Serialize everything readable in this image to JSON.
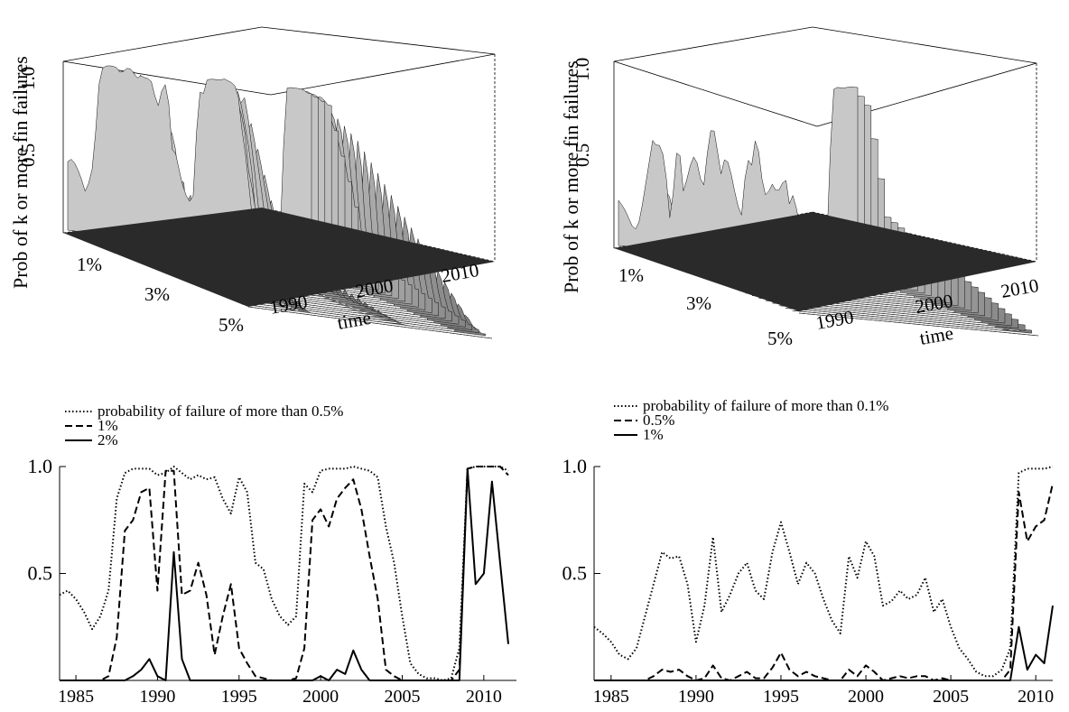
{
  "chart_data": [
    {
      "id": "top-left",
      "type": "surface3d",
      "zlabel": "Prob of k or more fin failures",
      "z_ticks": [
        "0.5",
        "1.0"
      ],
      "k_ticks": [
        "1%",
        "3%",
        "5%"
      ],
      "time_ticks": [
        "1990",
        "2000",
        "2010"
      ],
      "time_label": "time",
      "k_range": [
        0.5,
        5
      ],
      "time_range": [
        1984,
        2012
      ],
      "zlim": [
        0,
        1
      ]
    },
    {
      "id": "top-right",
      "type": "surface3d",
      "zlabel": "Prob of k or more fin failures",
      "z_ticks": [
        "0.5",
        "1.0"
      ],
      "k_ticks": [
        "1%",
        "3%",
        "5%"
      ],
      "time_ticks": [
        "1990",
        "2000",
        "2010"
      ],
      "time_label": "time",
      "k_range": [
        0.1,
        5
      ],
      "time_range": [
        1984,
        2012
      ],
      "zlim": [
        0,
        1
      ]
    },
    {
      "id": "bottom-left",
      "type": "line",
      "xlim": [
        1984,
        2012
      ],
      "ylim": [
        0,
        1
      ],
      "x_ticks": [
        "1985",
        "1990",
        "1995",
        "2000",
        "2005",
        "2010"
      ],
      "y_ticks": [
        "0.5",
        "1.0"
      ],
      "legend": "top-left",
      "series": [
        {
          "name": "probability of failure of more than 0.5%",
          "style": "dotted",
          "x": [
            1984,
            1984.5,
            1985,
            1985.5,
            1986,
            1986.5,
            1987,
            1987.5,
            1988,
            1988.5,
            1989,
            1989.5,
            1990,
            1990.5,
            1991,
            1991.5,
            1992,
            1992.5,
            1993,
            1993.5,
            1994,
            1994.5,
            1995,
            1995.5,
            1996,
            1996.5,
            1997,
            1997.5,
            1998,
            1998.5,
            1999,
            1999.5,
            2000,
            2000.5,
            2001,
            2001.5,
            2002,
            2002.5,
            2003,
            2003.5,
            2004,
            2004.5,
            2005,
            2005.5,
            2006,
            2006.5,
            2007,
            2007.5,
            2008,
            2008.5,
            2009,
            2009.5,
            2010,
            2010.5,
            2011,
            2011.5
          ],
          "y": [
            0.4,
            0.42,
            0.38,
            0.32,
            0.24,
            0.3,
            0.42,
            0.85,
            0.97,
            0.99,
            0.99,
            0.99,
            0.96,
            0.97,
            1.0,
            0.97,
            0.94,
            0.96,
            0.94,
            0.95,
            0.85,
            0.78,
            0.95,
            0.88,
            0.55,
            0.52,
            0.38,
            0.3,
            0.26,
            0.3,
            0.92,
            0.88,
            0.98,
            0.99,
            0.99,
            0.99,
            1.0,
            0.99,
            0.98,
            0.95,
            0.72,
            0.55,
            0.3,
            0.08,
            0.03,
            0.01,
            0.01,
            0.0,
            0.01,
            0.15,
            0.99,
            1.0,
            1.0,
            1.0,
            1.0,
            0.98
          ]
        },
        {
          "name": "1%",
          "style": "dashed",
          "x": [
            1984,
            1984.5,
            1985,
            1985.5,
            1986,
            1986.5,
            1987,
            1987.5,
            1988,
            1988.5,
            1989,
            1989.5,
            1990,
            1990.5,
            1991,
            1991.5,
            1992,
            1992.5,
            1993,
            1993.5,
            1994,
            1994.5,
            1995,
            1995.5,
            1996,
            1996.5,
            1997,
            1997.5,
            1998,
            1998.5,
            1999,
            1999.5,
            2000,
            2000.5,
            2001,
            2001.5,
            2002,
            2002.5,
            2003,
            2003.5,
            2004,
            2004.5,
            2005,
            2005.5,
            2006,
            2006.5,
            2007,
            2007.5,
            2008,
            2008.5,
            2009,
            2009.5,
            2010,
            2010.5,
            2011,
            2011.5
          ],
          "y": [
            0.0,
            0.0,
            0.0,
            0.0,
            0.0,
            0.0,
            0.02,
            0.2,
            0.7,
            0.75,
            0.88,
            0.9,
            0.42,
            0.98,
            0.98,
            0.4,
            0.42,
            0.55,
            0.4,
            0.12,
            0.3,
            0.45,
            0.15,
            0.08,
            0.02,
            0.01,
            0.0,
            0.0,
            0.0,
            0.01,
            0.15,
            0.75,
            0.8,
            0.72,
            0.85,
            0.9,
            0.94,
            0.8,
            0.58,
            0.38,
            0.05,
            0.02,
            0.0,
            0.0,
            0.0,
            0.0,
            0.0,
            0.0,
            0.0,
            0.05,
            0.99,
            1.0,
            1.0,
            1.0,
            1.0,
            0.96
          ]
        },
        {
          "name": "2%",
          "style": "solid",
          "x": [
            1984,
            1984.5,
            1985,
            1985.5,
            1986,
            1986.5,
            1987,
            1987.5,
            1988,
            1988.5,
            1989,
            1989.5,
            1990,
            1990.5,
            1991,
            1991.5,
            1992,
            1992.5,
            1993,
            1993.5,
            1994,
            1994.5,
            1995,
            1995.5,
            1996,
            1996.5,
            1997,
            1997.5,
            1998,
            1998.5,
            1999,
            1999.5,
            2000,
            2000.5,
            2001,
            2001.5,
            2002,
            2002.5,
            2003,
            2003.5,
            2004,
            2004.5,
            2005,
            2005.5,
            2006,
            2006.5,
            2007,
            2007.5,
            2008,
            2008.5,
            2009,
            2009.5,
            2010,
            2010.5,
            2011,
            2011.5
          ],
          "y": [
            0.0,
            0.0,
            0.0,
            0.0,
            0.0,
            0.0,
            0.0,
            0.0,
            0.0,
            0.02,
            0.05,
            0.1,
            0.02,
            0.0,
            0.6,
            0.1,
            0.0,
            0.0,
            0.0,
            0.0,
            0.0,
            0.0,
            0.0,
            0.0,
            0.0,
            0.0,
            0.0,
            0.0,
            0.0,
            0.0,
            0.0,
            0.0,
            0.02,
            0.0,
            0.05,
            0.03,
            0.14,
            0.05,
            0.0,
            0.0,
            0.0,
            0.0,
            0.0,
            0.0,
            0.0,
            0.0,
            0.0,
            0.0,
            0.0,
            0.0,
            0.99,
            0.45,
            0.5,
            0.93,
            0.55,
            0.17
          ]
        }
      ]
    },
    {
      "id": "bottom-right",
      "type": "line",
      "xlim": [
        1984,
        2011
      ],
      "ylim": [
        0,
        1
      ],
      "x_ticks": [
        "1985",
        "1990",
        "1995",
        "2000",
        "2005",
        "2010"
      ],
      "y_ticks": [
        "0.5",
        "1.0"
      ],
      "legend": "top-left",
      "series": [
        {
          "name": "probability of failure of more than 0.1%",
          "style": "dotted",
          "x": [
            1984,
            1984.5,
            1985,
            1985.5,
            1986,
            1986.5,
            1987,
            1987.5,
            1988,
            1988.5,
            1989,
            1989.5,
            1990,
            1990.5,
            1991,
            1991.5,
            1992,
            1992.5,
            1993,
            1993.5,
            1994,
            1994.5,
            1995,
            1995.5,
            1996,
            1996.5,
            1997,
            1997.5,
            1998,
            1998.5,
            1999,
            1999.5,
            2000,
            2000.5,
            2001,
            2001.5,
            2002,
            2002.5,
            2003,
            2003.5,
            2004,
            2004.5,
            2005,
            2005.5,
            2006,
            2006.5,
            2007,
            2007.5,
            2008,
            2008.5,
            2009,
            2009.5,
            2010,
            2010.5,
            2011
          ],
          "y": [
            0.25,
            0.22,
            0.18,
            0.12,
            0.1,
            0.15,
            0.3,
            0.45,
            0.6,
            0.57,
            0.58,
            0.45,
            0.18,
            0.35,
            0.67,
            0.32,
            0.4,
            0.5,
            0.55,
            0.42,
            0.38,
            0.6,
            0.74,
            0.6,
            0.45,
            0.55,
            0.5,
            0.38,
            0.28,
            0.22,
            0.58,
            0.48,
            0.65,
            0.58,
            0.35,
            0.37,
            0.42,
            0.38,
            0.4,
            0.48,
            0.32,
            0.38,
            0.25,
            0.15,
            0.1,
            0.04,
            0.02,
            0.02,
            0.05,
            0.15,
            0.97,
            0.99,
            0.99,
            0.99,
            1.0
          ]
        },
        {
          "name": "0.5%",
          "style": "dashed",
          "x": [
            1984,
            1984.5,
            1985,
            1985.5,
            1986,
            1986.5,
            1987,
            1987.5,
            1988,
            1988.5,
            1989,
            1989.5,
            1990,
            1990.5,
            1991,
            1991.5,
            1992,
            1992.5,
            1993,
            1993.5,
            1994,
            1994.5,
            1995,
            1995.5,
            1996,
            1996.5,
            1997,
            1997.5,
            1998,
            1998.5,
            1999,
            1999.5,
            2000,
            2000.5,
            2001,
            2001.5,
            2002,
            2002.5,
            2003,
            2003.5,
            2004,
            2004.5,
            2005,
            2005.5,
            2006,
            2006.5,
            2007,
            2007.5,
            2008,
            2008.5,
            2009,
            2009.5,
            2010,
            2010.5,
            2011
          ],
          "y": [
            0.0,
            0.0,
            0.0,
            0.0,
            0.0,
            0.0,
            0.0,
            0.02,
            0.05,
            0.04,
            0.05,
            0.02,
            0.0,
            0.01,
            0.07,
            0.01,
            0.0,
            0.02,
            0.04,
            0.01,
            0.01,
            0.06,
            0.13,
            0.05,
            0.02,
            0.04,
            0.02,
            0.01,
            0.0,
            0.0,
            0.05,
            0.02,
            0.07,
            0.04,
            0.0,
            0.01,
            0.02,
            0.01,
            0.02,
            0.02,
            0.0,
            0.01,
            0.0,
            0.0,
            0.0,
            0.0,
            0.0,
            0.0,
            0.0,
            0.05,
            0.88,
            0.65,
            0.72,
            0.75,
            0.92
          ]
        },
        {
          "name": "1%",
          "style": "solid",
          "x": [
            1984,
            1984.5,
            1985,
            1985.5,
            1986,
            1986.5,
            1987,
            1987.5,
            1988,
            1988.5,
            1989,
            1989.5,
            1990,
            1990.5,
            1991,
            1991.5,
            1992,
            1992.5,
            1993,
            1993.5,
            1994,
            1994.5,
            1995,
            1995.5,
            1996,
            1996.5,
            1997,
            1997.5,
            1998,
            1998.5,
            1999,
            1999.5,
            2000,
            2000.5,
            2001,
            2001.5,
            2002,
            2002.5,
            2003,
            2003.5,
            2004,
            2004.5,
            2005,
            2005.5,
            2006,
            2006.5,
            2007,
            2007.5,
            2008,
            2008.5,
            2009,
            2009.5,
            2010,
            2010.5,
            2011
          ],
          "y": [
            0.0,
            0.0,
            0.0,
            0.0,
            0.0,
            0.0,
            0.0,
            0.0,
            0.0,
            0.0,
            0.0,
            0.0,
            0.0,
            0.0,
            0.0,
            0.0,
            0.0,
            0.0,
            0.0,
            0.0,
            0.0,
            0.0,
            0.0,
            0.0,
            0.0,
            0.0,
            0.0,
            0.0,
            0.0,
            0.0,
            0.0,
            0.0,
            0.0,
            0.0,
            0.0,
            0.0,
            0.0,
            0.0,
            0.0,
            0.0,
            0.0,
            0.0,
            0.0,
            0.0,
            0.0,
            0.0,
            0.0,
            0.0,
            0.0,
            0.0,
            0.25,
            0.05,
            0.12,
            0.08,
            0.35
          ]
        }
      ]
    }
  ]
}
